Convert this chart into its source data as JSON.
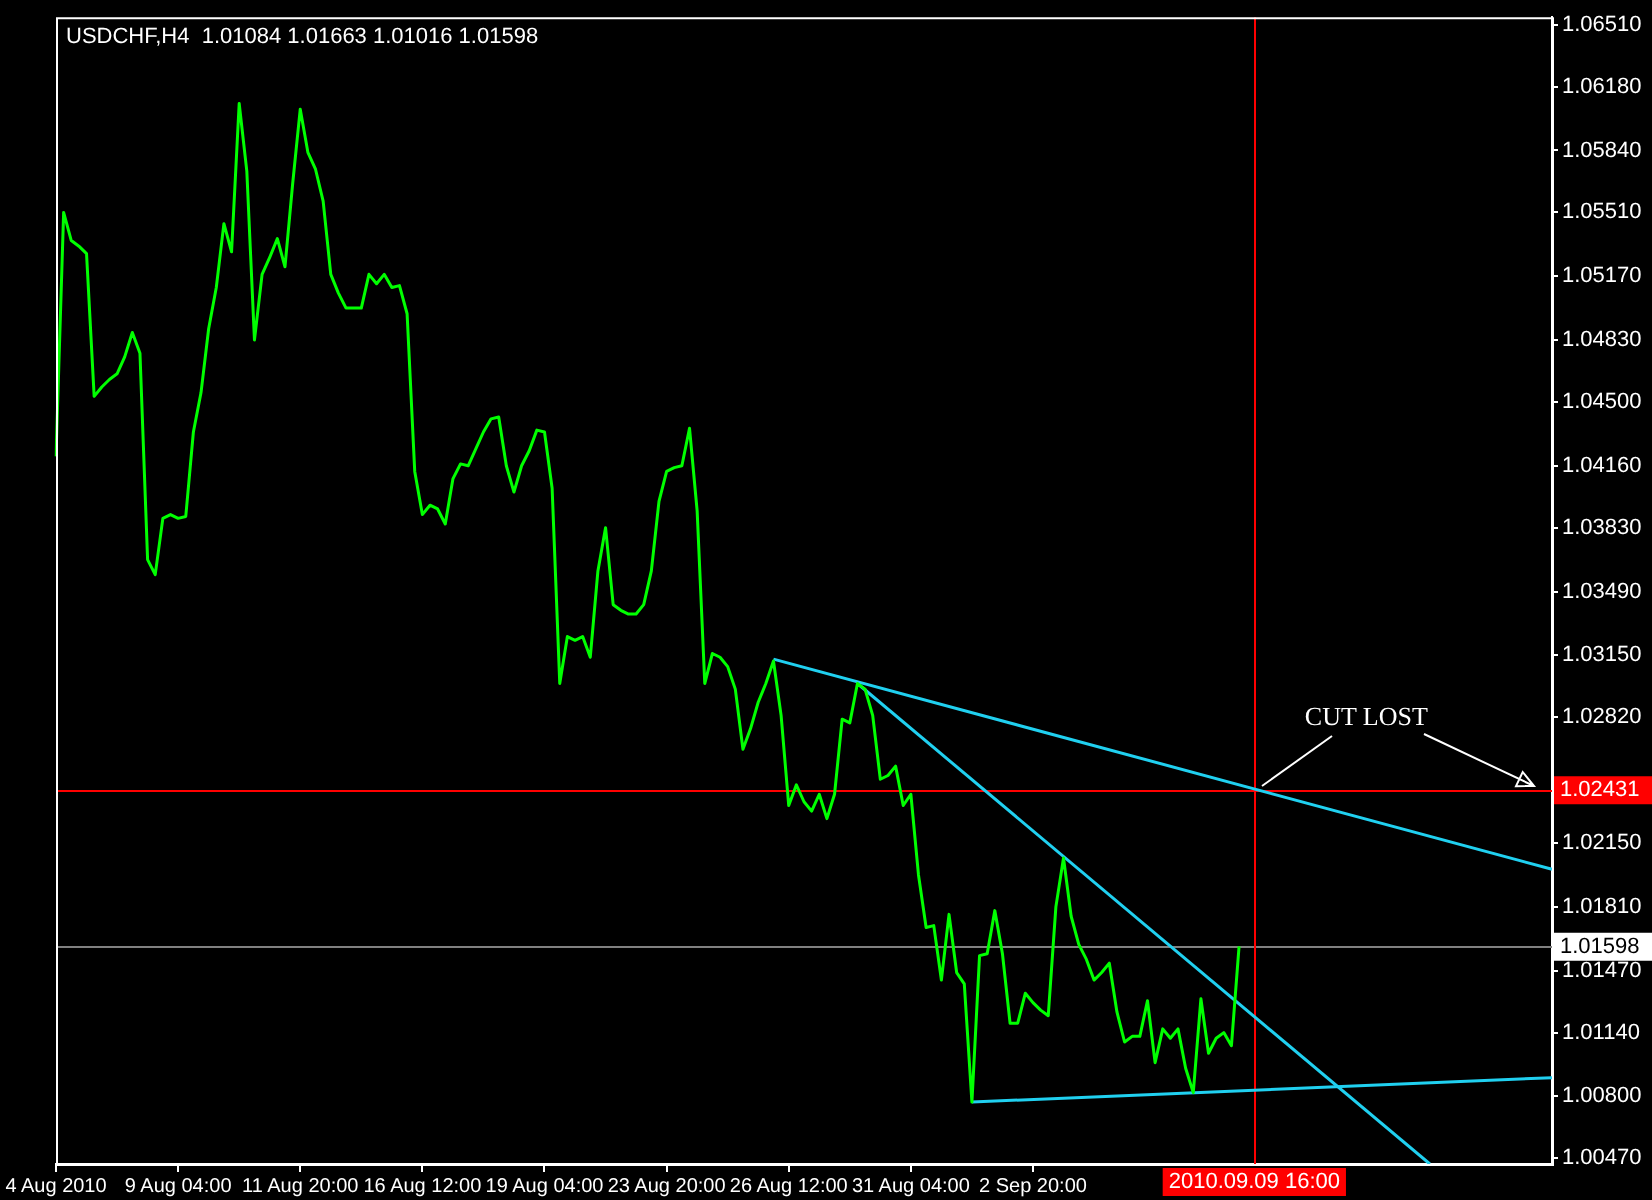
{
  "chart_data": {
    "type": "line",
    "title": "USDCHF,H4  1.01084 1.01663 1.01016 1.01598",
    "grid": false,
    "legend": false,
    "marker": "none",
    "categories": [
      "4 Aug 2010",
      null,
      null,
      null,
      null,
      null,
      null,
      null,
      null,
      null,
      null,
      null,
      null,
      null,
      null,
      null,
      "9 Aug 04:00",
      null,
      null,
      null,
      null,
      null,
      null,
      null,
      null,
      null,
      null,
      null,
      null,
      null,
      null,
      null,
      "11 Aug 20:00",
      null,
      null,
      null,
      null,
      null,
      null,
      null,
      null,
      null,
      null,
      null,
      null,
      null,
      null,
      null,
      "16 Aug 12:00",
      null,
      null,
      null,
      null,
      null,
      null,
      null,
      null,
      null,
      null,
      null,
      null,
      null,
      null,
      null,
      "19 Aug 04:00",
      null,
      null,
      null,
      null,
      null,
      null,
      null,
      null,
      null,
      null,
      null,
      null,
      null,
      null,
      null,
      "23 Aug 20:00",
      null,
      null,
      null,
      null,
      null,
      null,
      null,
      null,
      null,
      null,
      null,
      null,
      null,
      null,
      null,
      "26 Aug 12:00",
      null,
      null,
      null,
      null,
      null,
      null,
      null,
      null,
      null,
      null,
      null,
      null,
      null,
      null,
      null,
      "31 Aug 04:00",
      null,
      null,
      null,
      null,
      null,
      null,
      null,
      null,
      null,
      null,
      null,
      null,
      null,
      null,
      null,
      "2 Sep 20:00",
      null,
      null,
      null,
      null,
      null,
      null,
      null,
      null,
      null,
      null,
      null,
      null,
      null,
      null,
      null,
      null,
      null,
      null,
      null,
      null,
      null,
      null,
      null,
      null,
      null,
      null,
      null,
      null,
      "2010.09.09 16:00",
      null,
      null,
      null,
      null,
      null,
      null,
      null,
      null,
      null,
      null,
      null,
      null,
      null,
      null,
      null,
      null,
      null,
      null,
      null,
      null,
      null,
      null,
      null,
      null,
      null,
      null,
      null,
      null,
      null,
      null,
      null,
      null,
      null,
      null,
      null,
      null,
      null,
      null,
      null
    ],
    "ylim": [
      1.0044,
      1.0655
    ],
    "yticks": [
      {
        "value": 1.0047,
        "label": "1.00470"
      },
      {
        "value": 1.008,
        "label": "1.00800"
      },
      {
        "value": 1.0114,
        "label": "1.01140"
      },
      {
        "value": 1.0147,
        "label": "1.01470"
      },
      {
        "value": 1.0181,
        "label": "1.01810"
      },
      {
        "value": 1.0215,
        "label": "1.02150"
      },
      {
        "value": 1.0282,
        "label": "1.02820"
      },
      {
        "value": 1.0315,
        "label": "1.03150"
      },
      {
        "value": 1.0349,
        "label": "1.03490"
      },
      {
        "value": 1.0383,
        "label": "1.03830"
      },
      {
        "value": 1.0416,
        "label": "1.04160"
      },
      {
        "value": 1.045,
        "label": "1.04500"
      },
      {
        "value": 1.0483,
        "label": "1.04830"
      },
      {
        "value": 1.0517,
        "label": "1.05170"
      },
      {
        "value": 1.0551,
        "label": "1.05510"
      },
      {
        "value": 1.0584,
        "label": "1.05840"
      },
      {
        "value": 1.0618,
        "label": "1.06180"
      },
      {
        "value": 1.0651,
        "label": "1.06510"
      }
    ],
    "series": [
      {
        "color": "#00ff00",
        "values": [
          1.0421,
          1.0551,
          1.0536,
          1.0533,
          1.0529,
          1.0453,
          1.0458,
          1.0462,
          1.0465,
          1.0474,
          1.0487,
          1.0476,
          1.0366,
          1.0358,
          1.0388,
          1.039,
          1.0388,
          1.0389,
          1.0434,
          1.0455,
          1.0489,
          1.0511,
          1.0545,
          1.053,
          1.0609,
          1.0573,
          1.0483,
          1.0518,
          1.0527,
          1.0537,
          1.0522,
          1.0566,
          1.0606,
          1.0583,
          1.0574,
          1.0557,
          1.0518,
          1.0508,
          1.05,
          1.05,
          1.05,
          1.0518,
          1.0513,
          1.0518,
          1.0511,
          1.0512,
          1.0497,
          1.0413,
          1.039,
          1.0395,
          1.0393,
          1.0385,
          1.0409,
          1.0417,
          1.0416,
          1.0425,
          1.0434,
          1.0441,
          1.0442,
          1.0416,
          1.0402,
          1.0416,
          1.0424,
          1.0435,
          1.0434,
          1.0404,
          1.03,
          1.0325,
          1.0323,
          1.0325,
          1.0314,
          1.036,
          1.0383,
          1.0342,
          1.0339,
          1.0337,
          1.0337,
          1.0342,
          1.036,
          1.0397,
          1.0413,
          1.0415,
          1.0416,
          1.0436,
          1.0392,
          1.03,
          1.0316,
          1.0314,
          1.0309,
          1.0297,
          1.0265,
          1.0276,
          1.029,
          1.03,
          1.0312,
          1.0283,
          1.0235,
          1.0246,
          1.0237,
          1.0232,
          1.0241,
          1.0228,
          1.0241,
          1.0281,
          1.0279,
          1.03,
          1.0297,
          1.0283,
          1.0249,
          1.0251,
          1.0256,
          1.0235,
          1.0241,
          1.0198,
          1.017,
          1.0171,
          1.0142,
          1.0177,
          1.0146,
          1.014,
          1.0077,
          1.0155,
          1.0156,
          1.0179,
          1.0156,
          1.0119,
          1.0119,
          1.0135,
          1.013,
          1.0126,
          1.0123,
          1.0181,
          1.0207,
          1.0176,
          1.0161,
          1.0153,
          1.0142,
          1.0146,
          1.0151,
          1.0125,
          1.0109,
          1.0112,
          1.0112,
          1.0131,
          1.0098,
          1.0116,
          1.0111,
          1.0116,
          1.0095,
          1.0082,
          1.0132,
          1.0103,
          1.0111,
          1.0114,
          1.0107,
          1.016,
          null,
          null,
          null,
          null,
          null,
          null,
          null,
          null,
          null,
          null,
          null,
          null,
          null,
          null,
          null,
          null,
          null,
          null,
          null,
          null,
          null,
          null,
          null,
          null,
          null,
          null,
          null,
          null,
          null,
          null,
          null,
          null,
          null,
          null,
          null,
          null,
          null,
          null,
          null,
          null,
          null
        ]
      },
      {
        "type": "line",
        "color": "#20d0f0",
        "values": [
          null,
          null,
          null,
          null,
          null,
          null,
          null,
          null,
          null,
          null,
          null,
          null,
          null,
          null,
          null,
          null,
          null,
          null,
          null,
          null,
          null,
          null,
          null,
          null,
          null,
          null,
          null,
          null,
          null,
          null,
          null,
          null,
          null,
          null,
          null,
          null,
          null,
          null,
          null,
          null,
          null,
          null,
          null,
          null,
          null,
          null,
          null,
          null,
          null,
          null,
          null,
          null,
          null,
          null,
          null,
          null,
          null,
          null,
          null,
          null,
          null,
          null,
          null,
          null,
          null,
          null,
          null,
          null,
          null,
          null,
          null,
          null,
          null,
          null,
          null,
          null,
          null,
          null,
          null,
          null,
          null,
          null,
          null,
          null,
          null,
          null,
          null,
          null,
          null,
          null,
          null,
          null,
          null,
          null,
          1.0313,
          null,
          null,
          null,
          null,
          null,
          null,
          null,
          null,
          null,
          null,
          null,
          null,
          null,
          null,
          null,
          null,
          null,
          null,
          null,
          null,
          null,
          null,
          null,
          null,
          null,
          null,
          null,
          null,
          null,
          null,
          null,
          null,
          null,
          null,
          null,
          null,
          null,
          null,
          null,
          null,
          null,
          null,
          null,
          null,
          null,
          null,
          null,
          null,
          null,
          null,
          null,
          null,
          null,
          null,
          null,
          null,
          null,
          null,
          null,
          null,
          null,
          null,
          null,
          null,
          null,
          null,
          null,
          null,
          null,
          null,
          null,
          null,
          null,
          null,
          null,
          null,
          null,
          null,
          null,
          null,
          null,
          null,
          null,
          null,
          null,
          null,
          null,
          null,
          null,
          null,
          null,
          null,
          null,
          null,
          null,
          null,
          null,
          null,
          null,
          null,
          null,
          1.0201
        ]
      },
      {
        "type": "line",
        "color": "#20d0f0",
        "values": [
          null,
          null,
          null,
          null,
          null,
          null,
          null,
          null,
          null,
          null,
          null,
          null,
          null,
          null,
          null,
          null,
          null,
          null,
          null,
          null,
          null,
          null,
          null,
          null,
          null,
          null,
          null,
          null,
          null,
          null,
          null,
          null,
          null,
          null,
          null,
          null,
          null,
          null,
          null,
          null,
          null,
          null,
          null,
          null,
          null,
          null,
          null,
          null,
          null,
          null,
          null,
          null,
          null,
          null,
          null,
          null,
          null,
          null,
          null,
          null,
          null,
          null,
          null,
          null,
          null,
          null,
          null,
          null,
          null,
          null,
          null,
          null,
          null,
          null,
          null,
          null,
          null,
          null,
          null,
          null,
          null,
          null,
          null,
          null,
          null,
          null,
          null,
          null,
          null,
          null,
          null,
          null,
          null,
          null,
          null,
          null,
          null,
          null,
          null,
          null,
          null,
          null,
          null,
          null,
          null,
          1.03,
          null,
          null,
          null,
          null,
          null,
          null,
          null,
          null,
          null,
          null,
          null,
          null,
          null,
          null,
          null,
          null,
          null,
          null,
          null,
          null,
          null,
          null,
          null,
          null,
          null,
          null,
          null,
          null,
          null,
          null,
          null,
          null,
          null,
          null,
          null,
          null,
          null,
          null,
          null,
          null,
          null,
          null,
          null,
          null,
          null,
          null,
          null,
          null,
          null,
          null,
          null,
          null,
          null,
          null,
          null,
          null,
          null,
          null,
          null,
          null,
          null,
          null,
          null,
          null,
          null,
          null,
          null,
          null,
          null,
          null,
          null,
          null,
          null,
          null,
          1.0044,
          null,
          null,
          null,
          null,
          null,
          null,
          null,
          null,
          null,
          null,
          null,
          null,
          null,
          null,
          null,
          null
        ]
      },
      {
        "type": "line",
        "color": "#20d0f0",
        "values": [
          null,
          null,
          null,
          null,
          null,
          null,
          null,
          null,
          null,
          null,
          null,
          null,
          null,
          null,
          null,
          null,
          null,
          null,
          null,
          null,
          null,
          null,
          null,
          null,
          null,
          null,
          null,
          null,
          null,
          null,
          null,
          null,
          null,
          null,
          null,
          null,
          null,
          null,
          null,
          null,
          null,
          null,
          null,
          null,
          null,
          null,
          null,
          null,
          null,
          null,
          null,
          null,
          null,
          null,
          null,
          null,
          null,
          null,
          null,
          null,
          null,
          null,
          null,
          null,
          null,
          null,
          null,
          null,
          null,
          null,
          null,
          null,
          null,
          null,
          null,
          null,
          null,
          null,
          null,
          null,
          null,
          null,
          null,
          null,
          null,
          null,
          null,
          null,
          null,
          null,
          null,
          null,
          null,
          null,
          null,
          null,
          null,
          null,
          null,
          null,
          null,
          null,
          null,
          null,
          null,
          null,
          null,
          null,
          null,
          null,
          null,
          null,
          null,
          null,
          null,
          null,
          null,
          null,
          null,
          null,
          1.0077,
          null,
          null,
          null,
          null,
          null,
          null,
          null,
          null,
          null,
          null,
          null,
          null,
          null,
          null,
          null,
          null,
          null,
          null,
          null,
          null,
          null,
          null,
          null,
          null,
          null,
          null,
          null,
          null,
          null,
          null,
          null,
          null,
          null,
          null,
          null,
          null,
          null,
          null,
          null,
          null,
          null,
          null,
          null,
          null,
          null,
          null,
          null,
          null,
          null,
          null,
          null,
          null,
          null,
          null,
          null,
          null,
          null,
          null,
          null,
          null,
          null,
          null,
          null,
          null,
          null,
          null,
          null,
          null,
          null,
          null,
          null,
          null,
          null,
          null,
          null,
          1.009
        ]
      }
    ],
    "ref_lines": [
      {
        "axis": "y",
        "value": 1.02431,
        "label": "1.02431",
        "color": "#ff0000"
      },
      {
        "axis": "y",
        "value": 1.01598,
        "label": "1.01598",
        "color": "#808080"
      },
      {
        "axis": "x",
        "value": "2010.09.09 16:00",
        "color": "#ff0000"
      }
    ],
    "annotations": [
      {
        "text": "CUT LOST",
        "x": "2010.09.09 16:00",
        "y": 1.0243
      }
    ]
  }
}
